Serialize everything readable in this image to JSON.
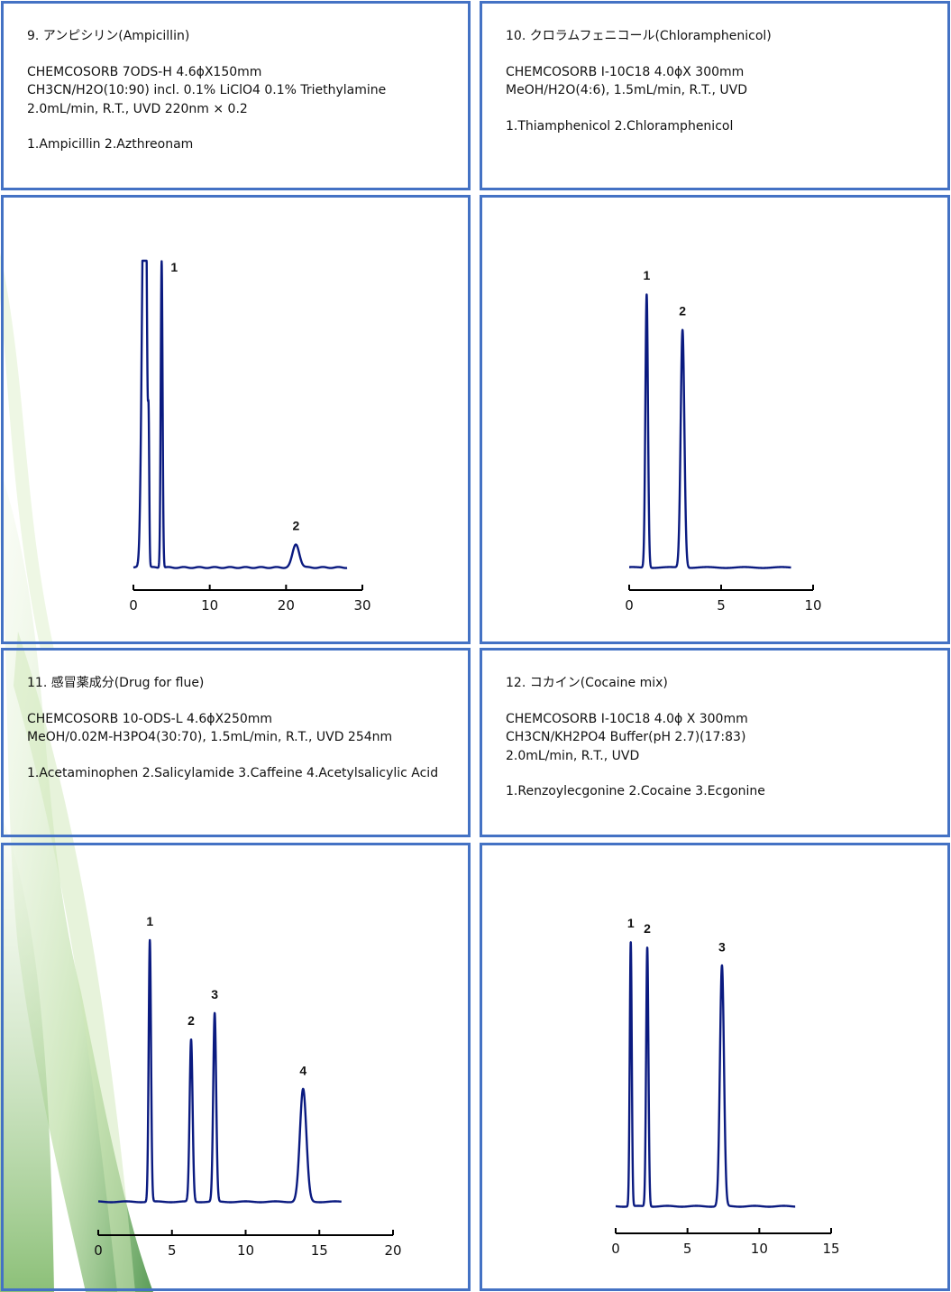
{
  "panels": [
    {
      "title": "9. アンピシリン(Ampicillin)",
      "column": "CHEMCOSORB 7ODS-H 4.6ϕX150mm",
      "conditions": [
        "CH3CN/H2O(10:90) incl. 0.1% LiClO4 0.1% Triethylamine",
        "2.0mL/min, R.T., UVD 220nm × 0.2"
      ],
      "compounds": "1.Ampicillin 2.Azthreonam"
    },
    {
      "title": "10. クロラムフェニコール(Chloramphenicol)",
      "column": "CHEMCOSORB I-10C18 4.0ϕX 300mm",
      "conditions": [
        "MeOH/H2O(4:6), 1.5mL/min, R.T., UVD"
      ],
      "compounds": "1.Thiamphenicol 2.Chloramphenicol"
    },
    {
      "title": "11. 感冒薬成分(Drug for flue)",
      "column": "CHEMCOSORB 10-ODS-L 4.6ϕX250mm",
      "conditions": [
        "MeOH/0.02M-H3PO4(30:70), 1.5mL/min, R.T., UVD 254nm"
      ],
      "compounds": "1.Acetaminophen 2.Salicylamide 3.Caffeine 4.Acetylsalicylic Acid"
    },
    {
      "title": "12. コカイン(Cocaine mix)",
      "column": "CHEMCOSORB I-10C18 4.0ϕ X 300mm",
      "conditions": [
        "CH3CN/KH2PO4 Buffer(pH 2.7)(17:83)",
        "2.0mL/min, R.T., UVD"
      ],
      "compounds": "1.Renzoylecgonine 2.Cocaine 3.Ecgonine"
    }
  ],
  "chart_data": [
    {
      "type": "line",
      "x_ticks": [
        0,
        10,
        20,
        30
      ],
      "xlim": [
        0,
        30
      ],
      "line_color": "#0a1a80",
      "baseline": 0,
      "peaks": [
        {
          "t": 1.3,
          "h": 100,
          "w": 0.25
        },
        {
          "t": 1.6,
          "h": 100,
          "w": 0.2
        },
        {
          "t": 2.0,
          "h": 36,
          "w": 0.08
        },
        {
          "t": 3.7,
          "h": 100,
          "w": 0.12
        },
        {
          "t": 21.3,
          "h": 7.5,
          "w": 0.45
        }
      ],
      "labels": [
        {
          "text": "1",
          "t": 3.7
        },
        {
          "text": "2",
          "t": 21.3
        }
      ]
    },
    {
      "type": "line",
      "x_ticks": [
        0,
        5,
        10
      ],
      "xlim": [
        0,
        10
      ],
      "line_color": "#0a1a80",
      "baseline": 0,
      "peaks": [
        {
          "t": 0.95,
          "h": 100,
          "w": 0.07
        },
        {
          "t": 2.9,
          "h": 87,
          "w": 0.1
        }
      ],
      "labels": [
        {
          "text": "1",
          "t": 0.95
        },
        {
          "text": "2",
          "t": 2.9
        }
      ]
    },
    {
      "type": "line",
      "x_ticks": [
        0,
        5,
        10,
        15,
        20
      ],
      "xlim": [
        0,
        20
      ],
      "line_color": "#0a1a80",
      "baseline": 0,
      "peaks": [
        {
          "t": 3.5,
          "h": 100,
          "w": 0.08
        },
        {
          "t": 6.3,
          "h": 62,
          "w": 0.1
        },
        {
          "t": 7.9,
          "h": 72,
          "w": 0.1
        },
        {
          "t": 13.9,
          "h": 43,
          "w": 0.22
        }
      ],
      "labels": [
        {
          "text": "1",
          "t": 3.5
        },
        {
          "text": "2",
          "t": 6.3
        },
        {
          "text": "3",
          "t": 7.9
        },
        {
          "text": "4",
          "t": 13.9
        }
      ]
    },
    {
      "type": "line",
      "x_ticks": [
        0,
        5,
        10,
        15
      ],
      "xlim": [
        0,
        15
      ],
      "line_color": "#0a1a80",
      "baseline": 0,
      "peaks": [
        {
          "t": 1.05,
          "h": 100,
          "w": 0.07
        },
        {
          "t": 2.2,
          "h": 98,
          "w": 0.08
        },
        {
          "t": 7.4,
          "h": 91,
          "w": 0.14
        }
      ],
      "labels": [
        {
          "text": "1",
          "t": 1.05
        },
        {
          "text": "2",
          "t": 2.2
        },
        {
          "text": "3",
          "t": 7.4
        }
      ]
    }
  ]
}
